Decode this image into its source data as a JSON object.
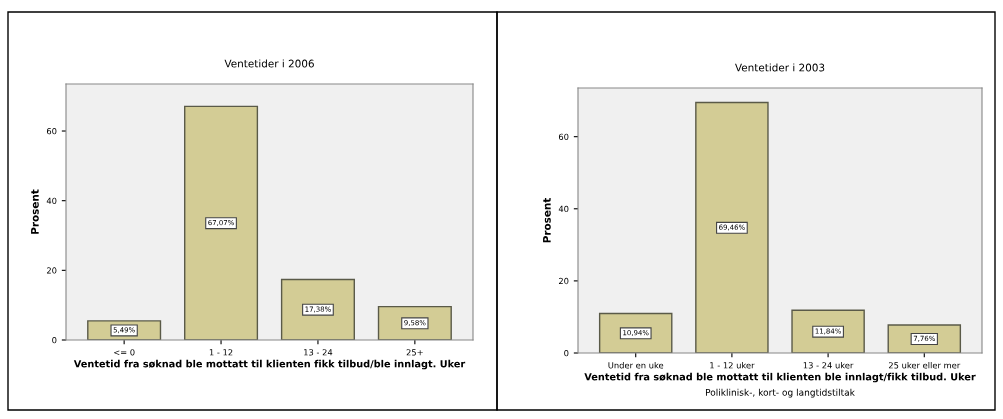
{
  "chart_data": [
    {
      "type": "bar",
      "title": "Ventetider i 2006",
      "xlabel": "Ventetid fra søknad ble mottatt til klienten fikk tilbud/ble innlagt. Uker",
      "ylabel": "Prosent",
      "categories": [
        "<= 0",
        "1 - 12",
        "13 - 24",
        "25+"
      ],
      "values": [
        5.49,
        67.07,
        17.38,
        9.58
      ],
      "value_labels": [
        "5,49%",
        "67,07%",
        "17,38%",
        "9,58%"
      ],
      "color": "#d3cc95",
      "ylim": [
        0,
        73.5
      ],
      "yticks": [
        0,
        20,
        40,
        60
      ],
      "grid": false
    },
    {
      "type": "bar",
      "title": "Ventetider i 2003",
      "xlabel": "Ventetid fra søknad ble mottatt til klienten ble innlagt/fikk tilbud. Uker",
      "ylabel": "Prosent",
      "annotations": [
        "Poliklinisk-, kort- og langtidstiltak"
      ],
      "categories": [
        "Under en uke",
        "1 - 12 uker",
        "13 - 24 uker",
        "25 uker eller mer"
      ],
      "values": [
        10.94,
        69.46,
        11.84,
        7.76
      ],
      "value_labels": [
        "10,94%",
        "69,46%",
        "11,84%",
        "7,76%"
      ],
      "color": "#d3cc95",
      "ylim": [
        0,
        73.5
      ],
      "yticks": [
        0,
        20,
        40,
        60
      ],
      "grid": false
    }
  ]
}
